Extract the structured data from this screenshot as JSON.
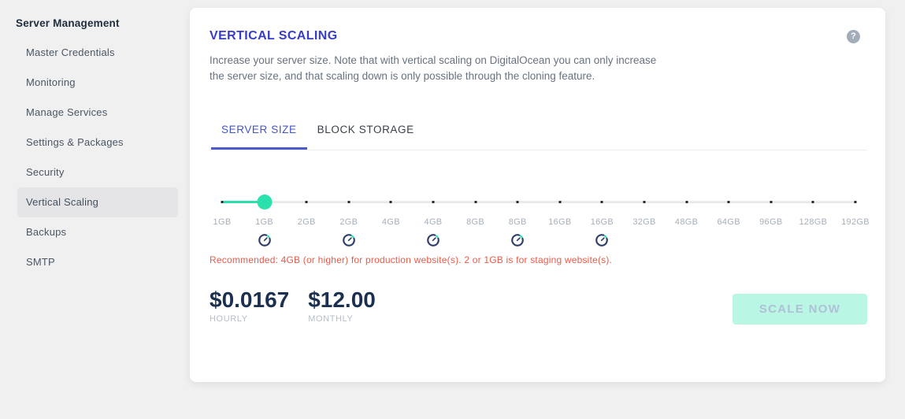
{
  "sidebar": {
    "title": "Server Management",
    "items": [
      {
        "label": "Master Credentials",
        "active": false
      },
      {
        "label": "Monitoring",
        "active": false
      },
      {
        "label": "Manage Services",
        "active": false
      },
      {
        "label": "Settings & Packages",
        "active": false
      },
      {
        "label": "Security",
        "active": false
      },
      {
        "label": "Vertical Scaling",
        "active": true
      },
      {
        "label": "Backups",
        "active": false
      },
      {
        "label": "SMTP",
        "active": false
      }
    ]
  },
  "panel": {
    "title": "VERTICAL SCALING",
    "description_lines": [
      "Increase your server size. Note that with vertical scaling on DigitalOcean you can only increase",
      "the server size, and that scaling down is only possible through the cloning feature."
    ],
    "tabs": [
      {
        "label": "SERVER SIZE",
        "active": true
      },
      {
        "label": "BLOCK STORAGE",
        "active": false
      }
    ],
    "slider": {
      "items": [
        {
          "label": "1GB",
          "gauge": false
        },
        {
          "label": "1GB",
          "gauge": true
        },
        {
          "label": "2GB",
          "gauge": false
        },
        {
          "label": "2GB",
          "gauge": true
        },
        {
          "label": "4GB",
          "gauge": false
        },
        {
          "label": "4GB",
          "gauge": true
        },
        {
          "label": "8GB",
          "gauge": false
        },
        {
          "label": "8GB",
          "gauge": true
        },
        {
          "label": "16GB",
          "gauge": false
        },
        {
          "label": "16GB",
          "gauge": true
        },
        {
          "label": "32GB",
          "gauge": false
        },
        {
          "label": "48GB",
          "gauge": false
        },
        {
          "label": "64GB",
          "gauge": false
        },
        {
          "label": "96GB",
          "gauge": false
        },
        {
          "label": "128GB",
          "gauge": false
        },
        {
          "label": "192GB",
          "gauge": false
        }
      ],
      "selected_index": 1,
      "selected_label": "1GB"
    },
    "recommendation": "Recommended: 4GB (or higher) for production website(s). 2 or 1GB is for staging website(s).",
    "pricing": {
      "hourly_value": "$0.0167",
      "hourly_label": "HOURLY",
      "monthly_value": "$12.00",
      "monthly_label": "MONTHLY"
    },
    "scale_button_label": "SCALE NOW"
  },
  "icons": {
    "help": "?",
    "gauge": "speedometer-icon"
  },
  "colors": {
    "accent_blue": "#4355cd",
    "title_indigo": "#383dc6",
    "teal": "#29dfab",
    "gauge_navy": "#2e3f69",
    "price_navy": "#1b3051",
    "warning_red": "#e55c4b",
    "button_mint": "#b9f6e4",
    "sidebar_highlight": "#e5e5e7",
    "background": "#f0f0f1"
  }
}
